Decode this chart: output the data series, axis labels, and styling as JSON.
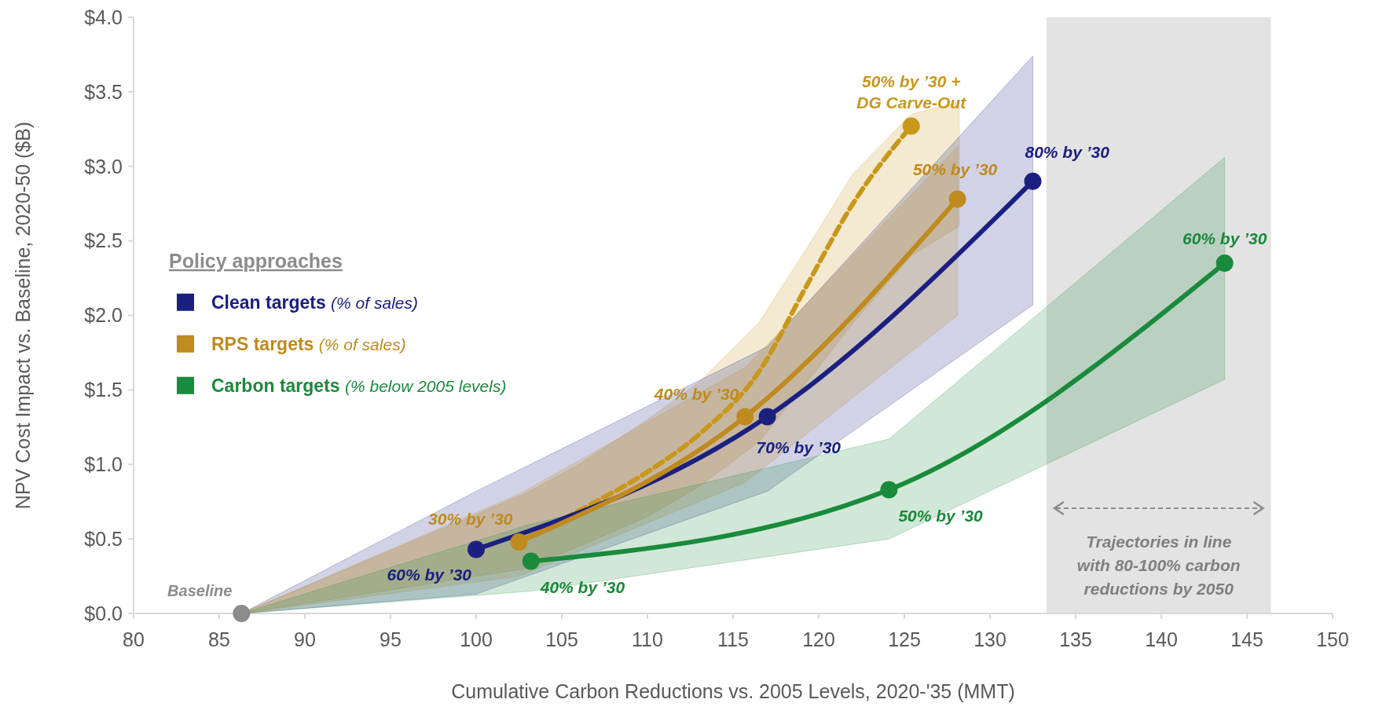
{
  "chart_data": {
    "type": "line",
    "xlabel": "Cumulative Carbon Reductions vs. 2005 Levels, 2020-'35 (MMT)",
    "ylabel": "NPV Cost Impact vs. Baseline, 2020-50 ($B)",
    "legend_title": "Policy approaches",
    "legend": "left",
    "marker": "circle",
    "grid": false,
    "xlim": [
      80,
      150
    ],
    "xticks": [
      80,
      85,
      90,
      95,
      100,
      105,
      110,
      115,
      120,
      125,
      130,
      135,
      140,
      145,
      150
    ],
    "ylim": [
      0,
      4
    ],
    "yticks": [
      {
        "value": 0,
        "label": "$0.0"
      },
      {
        "value": 0.5,
        "label": "$0.5"
      },
      {
        "value": 1,
        "label": "$1.0"
      },
      {
        "value": 1.5,
        "label": "$1.5"
      },
      {
        "value": 2,
        "label": "$2.0"
      },
      {
        "value": 2.5,
        "label": "$2.5"
      },
      {
        "value": 3,
        "label": "$3.0"
      },
      {
        "value": 3.5,
        "label": "$3.5"
      },
      {
        "value": 4,
        "label": "$4.0"
      }
    ],
    "series": [
      {
        "line_style": "dashed",
        "marker": "none",
        "color": "#c9971a",
        "x": [
          86.3,
          102.8,
          106,
          110,
          113,
          116.5,
          119.3,
          122,
          125.4,
          128.2
        ],
        "values": [
          null,
          0.5,
          0.69,
          0.95,
          1.2,
          1.62,
          2.2,
          2.75,
          3.27,
          null
        ],
        "lower": [
          0,
          0.3,
          0.45,
          0.65,
          0.85,
          1.15,
          1.55,
          1.95,
          2.4,
          2.6
        ],
        "upper": [
          0,
          0.8,
          1.0,
          1.3,
          1.55,
          1.95,
          2.45,
          2.95,
          3.35,
          3.43
        ]
      },
      {
        "name": "Clean targets (% of sales)",
        "color": "#1b2080",
        "x": [
          86.3,
          100,
          117,
          132.5
        ],
        "values": [
          null,
          0.43,
          1.32,
          2.9
        ],
        "lower": [
          0,
          0.13,
          0.82,
          2.07
        ],
        "upper": [
          0,
          0.82,
          1.79,
          3.74
        ]
      },
      {
        "name": "RPS targets (% of sales)",
        "color": "#bf8a1e",
        "x": [
          86.3,
          102.5,
          115.7,
          128.1
        ],
        "values": [
          null,
          0.48,
          1.32,
          2.78
        ],
        "lower": [
          0,
          0.25,
          0.88,
          2.0
        ],
        "upper": [
          0,
          0.8,
          1.65,
          3.13
        ]
      },
      {
        "name": "Carbon targets (% below 2005 levels)",
        "color": "#1a8a3c",
        "x": [
          86.3,
          103.2,
          124.1,
          143.7
        ],
        "values": [
          null,
          0.35,
          0.83,
          2.35
        ],
        "lower": [
          0,
          0.15,
          0.5,
          1.57
        ],
        "upper": [
          0,
          0.6,
          1.17,
          3.06
        ]
      },
      {
        "type": "scatter",
        "color": "#c9971a",
        "x": [
          125.4
        ],
        "values": [
          3.27
        ]
      },
      {
        "type": "scatter",
        "name": "Baseline",
        "color": "#8c8c8c",
        "x": [
          86.3
        ],
        "values": [
          0
        ]
      }
    ],
    "bands": [
      {
        "axis": "x",
        "from": 133.3,
        "to": 146.4,
        "label": "Trajectories in line with 80-100% carbon reductions by 2050",
        "color": "#e3e3e3"
      }
    ],
    "annotations": [
      {
        "text": "30% by ’30",
        "x": 102.5,
        "y": 0.48
      },
      {
        "text": "40% by ’30",
        "x": 115.7,
        "y": 1.32
      },
      {
        "text": "50% by ’30",
        "x": 128.1,
        "y": 2.78
      },
      {
        "text": "50% by ’30 + DG Carve-Out",
        "x": 125.4,
        "y": 3.27
      },
      {
        "text": "60% by ’30",
        "x": 100,
        "y": 0.43
      },
      {
        "text": "70% by ’30",
        "x": 117,
        "y": 1.32
      },
      {
        "text": "80% by ’30",
        "x": 132.5,
        "y": 2.9
      },
      {
        "text": "40% by ’30",
        "x": 103.2,
        "y": 0.35
      },
      {
        "text": "50% by ’30",
        "x": 124.1,
        "y": 0.83
      },
      {
        "text": "60% by ’30",
        "x": 143.7,
        "y": 2.35
      }
    ]
  }
}
